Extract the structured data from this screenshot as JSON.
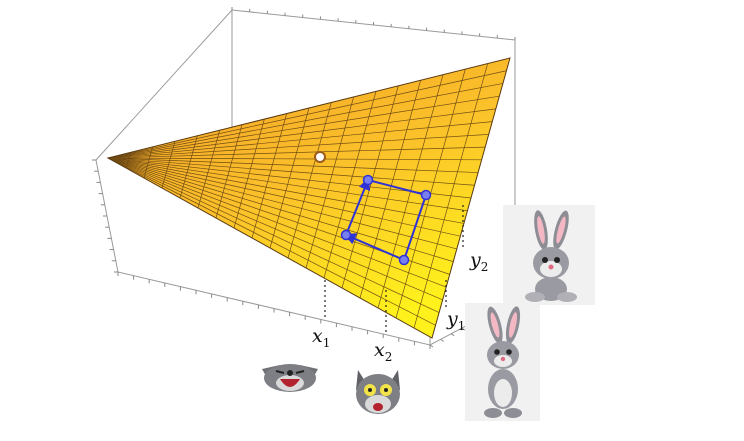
{
  "labels": {
    "x1": "x",
    "x1_sub": "1",
    "x2": "x",
    "x2_sub": "2",
    "y1": "y",
    "y1_sub": "1",
    "y2": "y",
    "y2_sub": "2"
  },
  "colors": {
    "surface_top": "#f4a52a",
    "surface_bottom": "#ffe11f",
    "grid_line": "#5a3a10",
    "box": "#9a9a9a",
    "quad": "#2f33d6",
    "marker": "#ffffff"
  },
  "icons": [
    "wolf-laughing-icon",
    "wolf-scared-icon",
    "rabbit-sitting-icon",
    "rabbit-standing-icon"
  ]
}
